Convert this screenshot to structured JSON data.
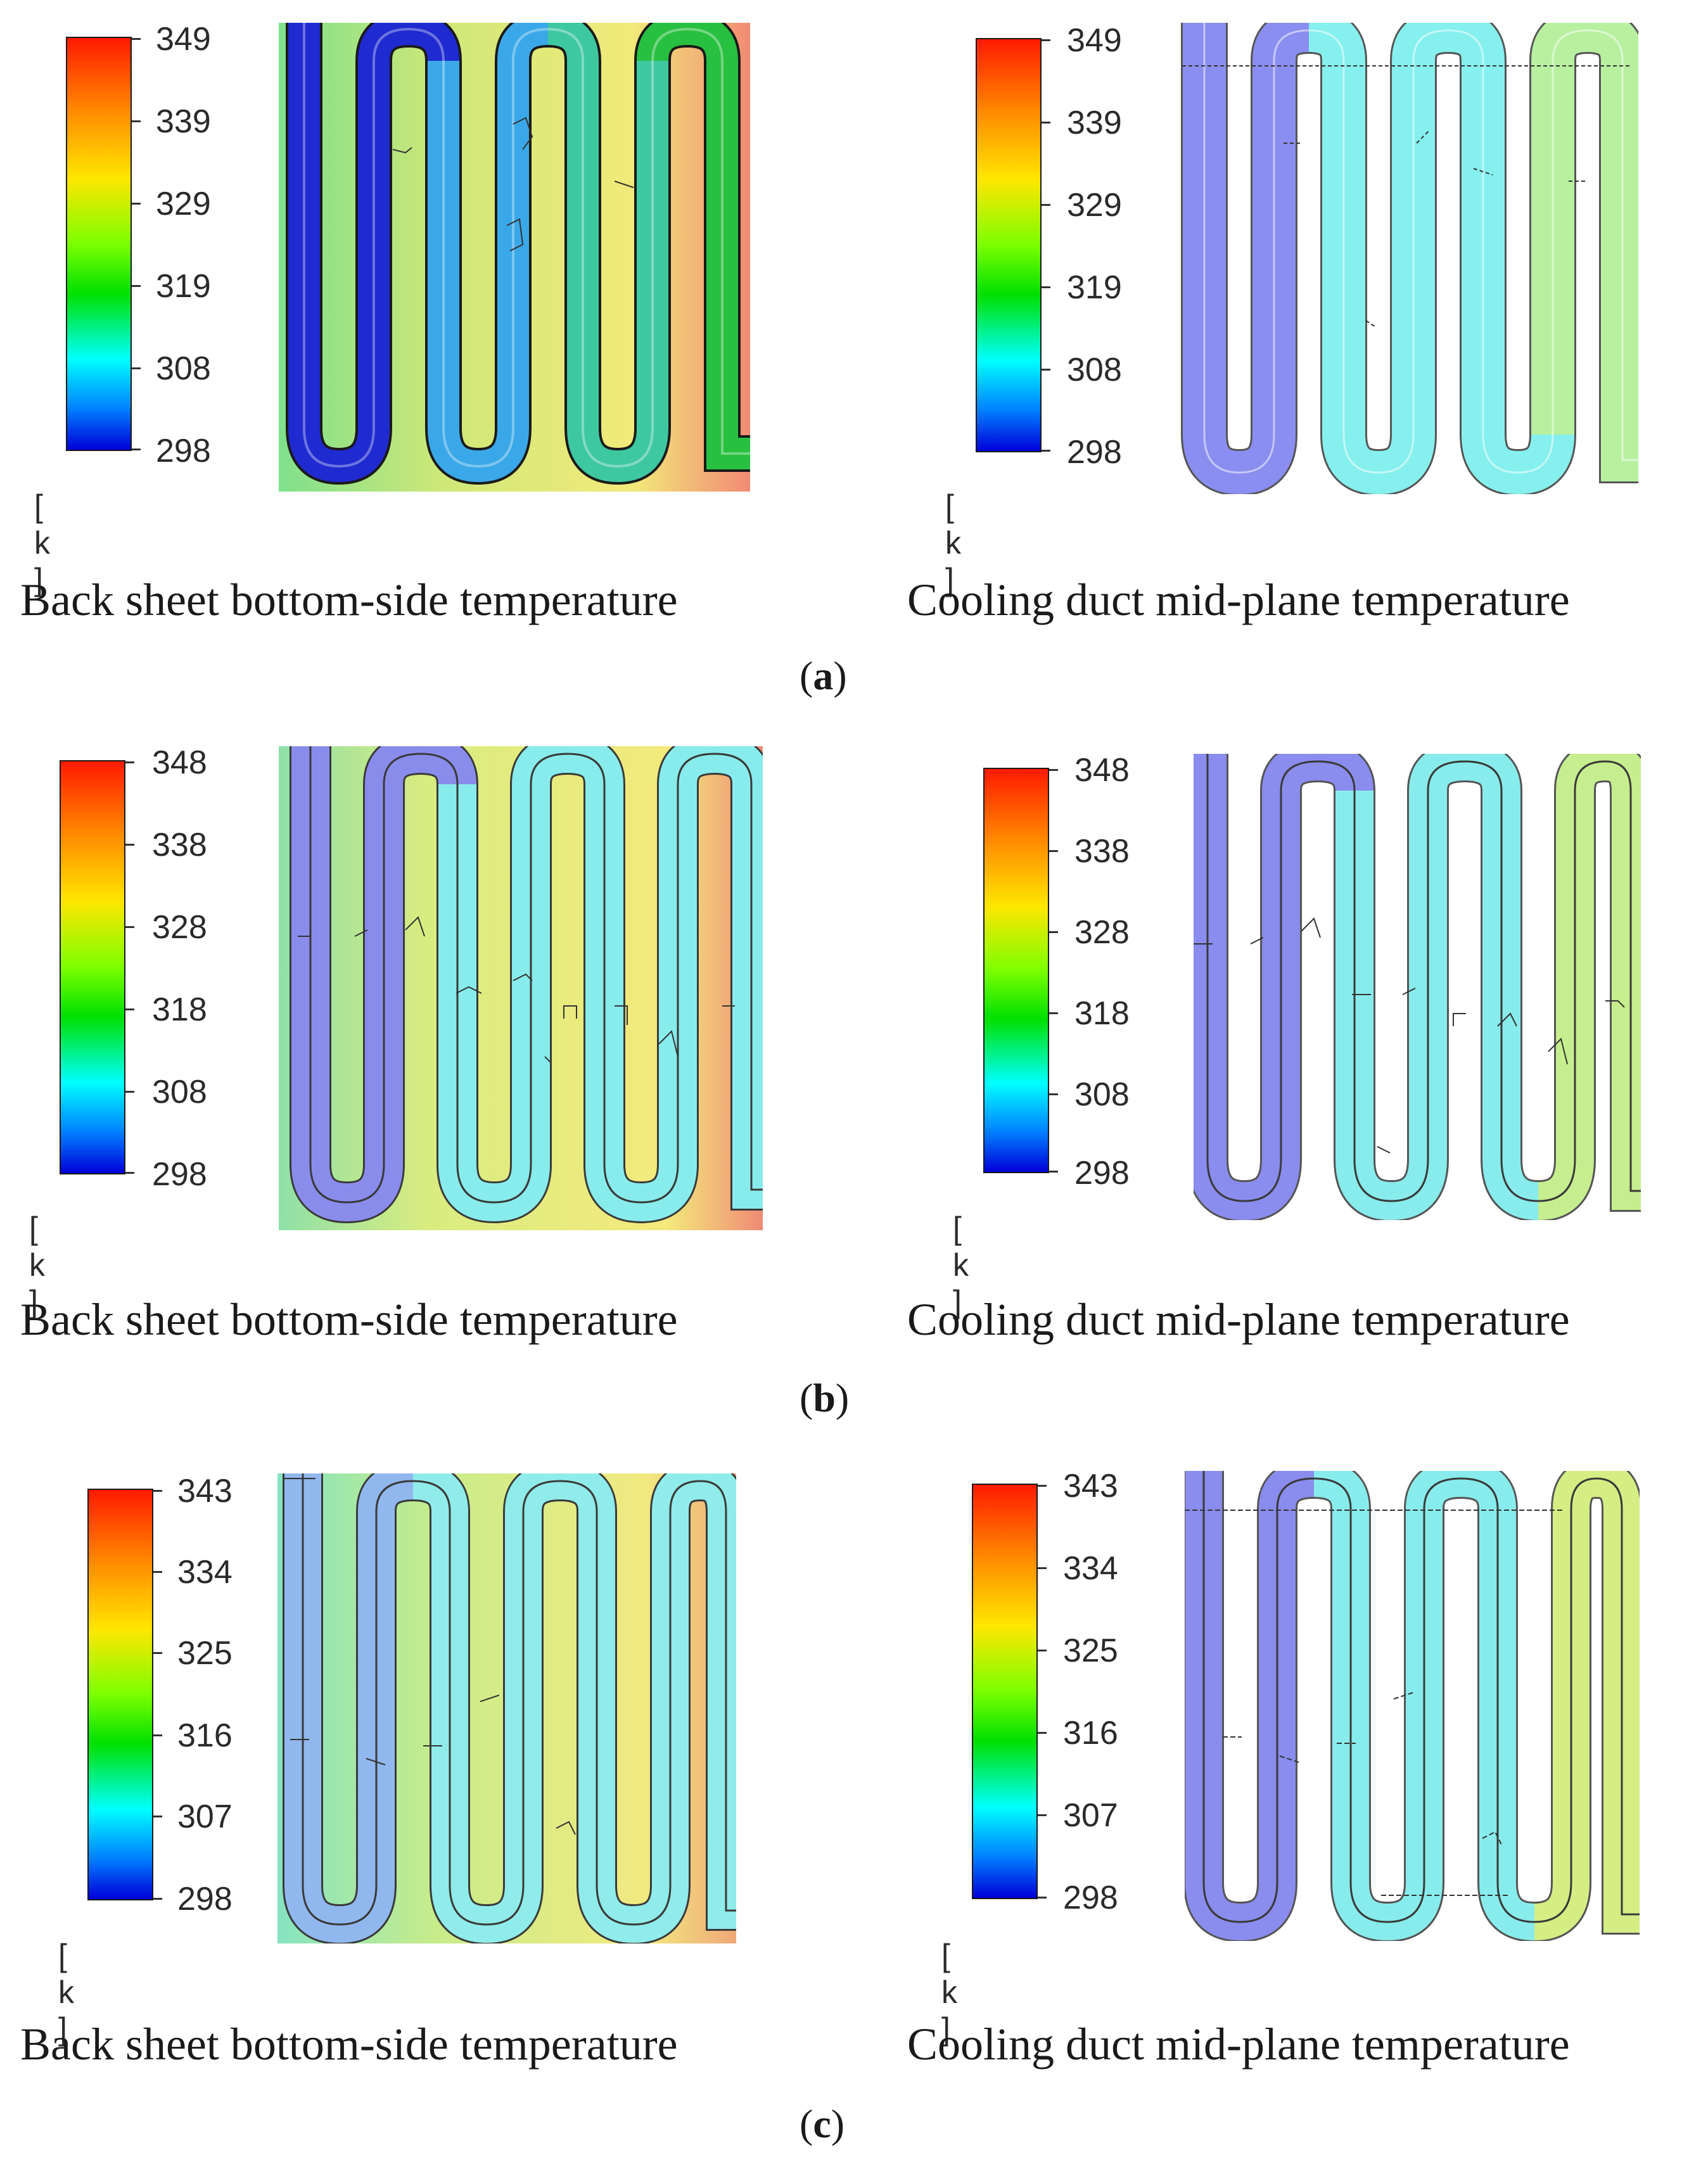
{
  "panels": [
    {
      "id": "a",
      "label_letter": "a",
      "left": {
        "colorbar_ticks": [
          "349",
          "339",
          "329",
          "319",
          "308",
          "298"
        ],
        "unit": "[ k ]",
        "caption": "Back sheet bottom-side temperature"
      },
      "right": {
        "colorbar_ticks": [
          "349",
          "339",
          "329",
          "319",
          "308",
          "298"
        ],
        "unit": "[ k ]",
        "caption": "Cooling duct mid-plane temperature"
      }
    },
    {
      "id": "b",
      "label_letter": "b",
      "left": {
        "colorbar_ticks": [
          "348",
          "338",
          "328",
          "318",
          "308",
          "298"
        ],
        "unit": "[ k ]",
        "caption": "Back sheet bottom-side temperature"
      },
      "right": {
        "colorbar_ticks": [
          "348",
          "338",
          "328",
          "318",
          "308",
          "298"
        ],
        "unit": "[ k ]",
        "caption": "Cooling duct mid-plane temperature"
      }
    },
    {
      "id": "c",
      "label_letter": "c",
      "left": {
        "colorbar_ticks": [
          "343",
          "334",
          "325",
          "316",
          "307",
          "298"
        ],
        "unit": "[ k ]",
        "caption": "Back sheet bottom-side temperature"
      },
      "right": {
        "colorbar_ticks": [
          "343",
          "334",
          "325",
          "316",
          "307",
          "298"
        ],
        "unit": "[ k ]",
        "caption": "Cooling duct mid-plane temperature"
      }
    }
  ],
  "colors": {
    "cold": "#2a2ad8",
    "cyan": "#7fe8f0",
    "warm": "#f2ea80",
    "hot": "#f08a70"
  }
}
